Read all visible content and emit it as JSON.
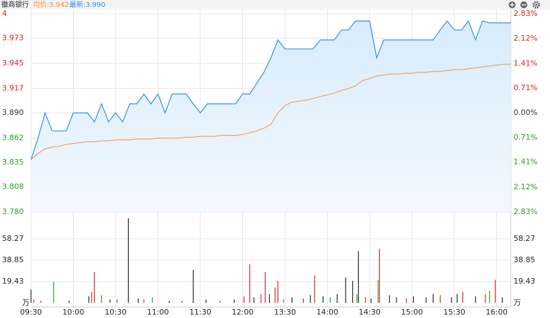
{
  "chart_data": {
    "type": "line",
    "title": "徽商银行",
    "avg_label": "均价:3.942",
    "last_label": "最新:3.990",
    "x": [
      0,
      5,
      10,
      15,
      20,
      25,
      30,
      35,
      40,
      45,
      50,
      55,
      60,
      65,
      70,
      75,
      80,
      85,
      90,
      95,
      100,
      105,
      110,
      115,
      120,
      125,
      130,
      135,
      140,
      145,
      150,
      155,
      160,
      165,
      170,
      175,
      180,
      185,
      190,
      195,
      200,
      205,
      210,
      215,
      220,
      225,
      230,
      235,
      240,
      245,
      250,
      255,
      260,
      265,
      270,
      275,
      280,
      285,
      290,
      295,
      300,
      305,
      310,
      315,
      320,
      325,
      330,
      335,
      340
    ],
    "xlim": [
      0,
      340
    ],
    "xticks": [
      {
        "value": 0,
        "label": "09:30"
      },
      {
        "value": 30,
        "label": "10:00"
      },
      {
        "value": 60,
        "label": "10:30"
      },
      {
        "value": 90,
        "label": "11:00"
      },
      {
        "value": 120,
        "label": "11:30"
      },
      {
        "value": 150,
        "label": "12:00"
      },
      {
        "value": 180,
        "label": "13:30"
      },
      {
        "value": 210,
        "label": "14:00"
      },
      {
        "value": 240,
        "label": "14:30"
      },
      {
        "value": 270,
        "label": "15:00"
      },
      {
        "value": 300,
        "label": "15:30"
      },
      {
        "value": 330,
        "label": "16:00"
      }
    ],
    "series": [
      {
        "color": "#2e8fe6",
        "values": [
          3.838,
          3.862,
          3.89,
          3.87,
          3.87,
          3.87,
          3.89,
          3.89,
          3.89,
          3.88,
          3.9,
          3.88,
          3.89,
          3.88,
          3.9,
          3.9,
          3.911,
          3.9,
          3.911,
          3.89,
          3.911,
          3.911,
          3.911,
          3.9,
          3.89,
          3.9,
          3.9,
          3.9,
          3.9,
          3.9,
          3.911,
          3.911,
          3.923,
          3.935,
          3.951,
          3.971,
          3.961,
          3.961,
          3.961,
          3.961,
          3.961,
          3.971,
          3.971,
          3.971,
          3.982,
          3.982,
          3.992,
          3.992,
          3.992,
          3.951,
          3.971,
          3.971,
          3.971,
          3.971,
          3.971,
          3.971,
          3.971,
          3.971,
          3.982,
          3.992,
          3.982,
          3.982,
          3.992,
          3.971,
          3.992,
          3.99,
          3.99,
          3.99,
          3.99
        ]
      },
      {
        "color": "#f0a060",
        "values": [
          3.838,
          3.845,
          3.85,
          3.852,
          3.853,
          3.855,
          3.856,
          3.857,
          3.858,
          3.858,
          3.859,
          3.859,
          3.86,
          3.86,
          3.86,
          3.861,
          3.861,
          3.861,
          3.862,
          3.862,
          3.862,
          3.862,
          3.863,
          3.863,
          3.864,
          3.864,
          3.864,
          3.865,
          3.865,
          3.865,
          3.866,
          3.868,
          3.87,
          3.873,
          3.877,
          3.89,
          3.898,
          3.902,
          3.903,
          3.904,
          3.906,
          3.908,
          3.91,
          3.912,
          3.915,
          3.917,
          3.92,
          3.926,
          3.928,
          3.931,
          3.932,
          3.933,
          3.933,
          3.934,
          3.934,
          3.935,
          3.935,
          3.936,
          3.936,
          3.937,
          3.938,
          3.938,
          3.939,
          3.94,
          3.941,
          3.942,
          3.943,
          3.944,
          3.944
        ]
      }
    ],
    "ylim": [
      3.78,
      4.0
    ],
    "yticks": [
      4.0,
      3.973,
      3.945,
      3.917,
      {
        "value": 3.89,
        "label": "3.890"
      },
      3.862,
      3.835,
      3.808,
      {
        "value": 3.78,
        "label": "3.780"
      }
    ],
    "y2lim": [
      -2.83,
      2.83
    ],
    "y2ticks": [
      {
        "value": 2.83,
        "label": "2.83%"
      },
      {
        "value": 2.12,
        "label": "2.12%"
      },
      {
        "value": 1.41,
        "label": "1.41%"
      },
      {
        "value": 0.71,
        "label": "0.71%"
      },
      {
        "value": 0,
        "label": "0.00%"
      },
      {
        "value": -0.71,
        "label": "0.71%"
      },
      {
        "value": -1.41,
        "label": "1.41%"
      },
      {
        "value": -2.12,
        "label": "2.12%"
      },
      {
        "value": -2.83,
        "label": "2.83%"
      }
    ],
    "grid": true,
    "up_color": "#e0201f",
    "down_color": "#2a9d2a",
    "flat_color": "#333333",
    "volume": {
      "type": "bar",
      "unit": "万",
      "x": [
        0,
        2,
        7,
        16,
        27,
        41,
        43,
        45,
        50,
        56,
        61,
        69,
        76,
        80,
        86,
        98,
        107,
        115,
        124,
        134,
        144,
        151,
        155,
        158,
        163,
        166,
        169,
        173,
        175,
        179,
        185,
        193,
        198,
        201,
        207,
        212,
        217,
        223,
        228,
        231,
        232,
        237,
        241,
        246,
        247,
        254,
        259,
        266,
        271,
        280,
        285,
        290,
        298,
        302,
        306,
        315,
        322,
        325,
        329,
        334
      ],
      "values": [
        12,
        3,
        2,
        19,
        2,
        6,
        10,
        28,
        7,
        3,
        3,
        77,
        4,
        3,
        5,
        2,
        2,
        30,
        3,
        2,
        3,
        6,
        35,
        5,
        8,
        28,
        8,
        14,
        20,
        3,
        5,
        4,
        7,
        25,
        6,
        5,
        8,
        23,
        20,
        8,
        47,
        5,
        4,
        21,
        49,
        7,
        5,
        4,
        6,
        5,
        8,
        7,
        5,
        8,
        10,
        6,
        8,
        11,
        21,
        5
      ],
      "colors": [
        "#222",
        "#e0201f",
        "#e0201f",
        "#2a9d2a",
        "#222",
        "#222",
        "#e0201f",
        "#e0201f",
        "#2a9d2a",
        "#222",
        "#e0201f",
        "#222",
        "#222",
        "#e0201f",
        "#2a9d2a",
        "#222",
        "#e0201f",
        "#222",
        "#222",
        "#e0201f",
        "#222",
        "#e0201f",
        "#e0201f",
        "#222",
        "#e0201f",
        "#e0201f",
        "#222",
        "#e0201f",
        "#e0201f",
        "#2a9d2a",
        "#222",
        "#e0201f",
        "#222",
        "#e0201f",
        "#222",
        "#2a9d2a",
        "#222",
        "#222",
        "#222",
        "#2a9d2a",
        "#222",
        "#e0201f",
        "#222",
        "#2a9d2a",
        "#e0201f",
        "#222",
        "#222",
        "#e0201f",
        "#222",
        "#222",
        "#222",
        "#e0201f",
        "#222",
        "#222",
        "#e0201f",
        "#222",
        "#e0201f",
        "#2a9d2a",
        "#e0201f",
        "#222"
      ],
      "ylim": [
        0,
        77.7
      ],
      "yticks": [
        19.43,
        38.85,
        58.27
      ]
    }
  }
}
